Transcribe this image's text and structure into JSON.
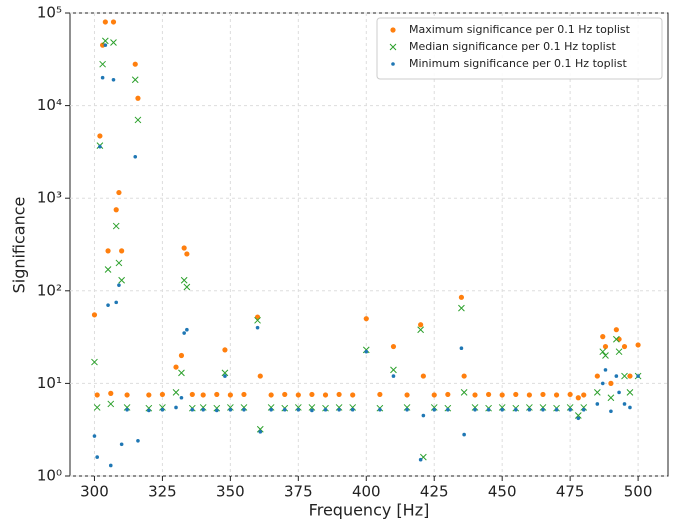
{
  "chart_data": {
    "type": "scatter",
    "xlabel": "Frequency [Hz]",
    "ylabel": "Significance",
    "yscale": "log",
    "grid": true,
    "legend": "upper right",
    "xlim": [
      291,
      511
    ],
    "ylim": [
      1,
      100000
    ],
    "xticks": [
      300,
      325,
      350,
      375,
      400,
      425,
      450,
      475,
      500
    ],
    "yticks": [
      {
        "value": 1,
        "label": "10⁰"
      },
      {
        "value": 10,
        "label": "10¹"
      },
      {
        "value": 100,
        "label": "10²"
      },
      {
        "value": 1000,
        "label": "10³"
      },
      {
        "value": 10000,
        "label": "10⁴"
      },
      {
        "value": 100000,
        "label": "10⁵"
      }
    ],
    "x": [
      300,
      301,
      302,
      303,
      304,
      305,
      306,
      307,
      308,
      309,
      310,
      312,
      315,
      316,
      320,
      325,
      330,
      332,
      333,
      334,
      336,
      340,
      345,
      348,
      350,
      355,
      360,
      361,
      365,
      370,
      375,
      380,
      385,
      390,
      395,
      400,
      405,
      410,
      415,
      420,
      421,
      425,
      430,
      435,
      436,
      440,
      445,
      450,
      455,
      460,
      465,
      470,
      475,
      478,
      480,
      485,
      487,
      488,
      490,
      492,
      493,
      495,
      497,
      500
    ],
    "series": [
      {
        "name": "Maximum significance per 0.1 Hz toplist",
        "color": "#ff7f0e",
        "marker": "o",
        "values": [
          55,
          7.5,
          4700,
          45000,
          80000,
          270,
          7.8,
          80000,
          750,
          1150,
          270,
          7.5,
          28000,
          12000,
          7.5,
          7.6,
          15,
          20,
          290,
          250,
          7.6,
          7.5,
          7.6,
          23,
          7.5,
          7.6,
          52,
          12,
          7.5,
          7.6,
          7.5,
          7.6,
          7.5,
          7.6,
          7.5,
          50,
          7.6,
          25,
          7.5,
          43,
          12,
          7.5,
          7.6,
          85,
          12,
          7.5,
          7.6,
          7.5,
          7.6,
          7.5,
          7.6,
          7.5,
          7.6,
          7,
          7.5,
          12,
          32,
          25,
          10,
          38,
          30,
          25,
          12,
          26
        ]
      },
      {
        "name": "Median significance per 0.1 Hz toplist",
        "color": "#2ca02c",
        "marker": "x",
        "values": [
          17,
          5.5,
          3700,
          28000,
          50000,
          170,
          6,
          48000,
          500,
          200,
          130,
          5.5,
          19000,
          7000,
          5.4,
          5.5,
          8,
          13,
          130,
          110,
          5.4,
          5.5,
          5.4,
          13,
          5.5,
          5.5,
          48,
          3.2,
          5.5,
          5.4,
          5.5,
          5.5,
          5.4,
          5.5,
          5.5,
          23,
          5.4,
          14,
          5.5,
          38,
          1.6,
          5.5,
          5.4,
          65,
          8,
          5.5,
          5.4,
          5.5,
          5.4,
          5.5,
          5.5,
          5.4,
          5.5,
          4.5,
          5.5,
          8,
          22,
          20,
          7,
          30,
          22,
          12,
          8,
          12
        ]
      },
      {
        "name": "Minimum significance per 0.1 Hz toplist",
        "color": "#1f77b4",
        "marker": ".",
        "values": [
          2.7,
          1.6,
          3600,
          20000,
          45000,
          70,
          1.3,
          19000,
          75,
          115,
          2.2,
          5.2,
          2800,
          2.4,
          5.1,
          5.2,
          5.5,
          7,
          35,
          38,
          5.2,
          5.2,
          5.1,
          12,
          5.2,
          5.2,
          40,
          3,
          5.2,
          5.2,
          5.2,
          5.1,
          5.2,
          5.2,
          5.2,
          22,
          5.2,
          12,
          5.2,
          1.5,
          4.5,
          5.2,
          5.2,
          24,
          2.8,
          5.2,
          5.2,
          5.2,
          5.2,
          5.2,
          5.2,
          5.2,
          5.2,
          4.2,
          5.2,
          6,
          10,
          14,
          5,
          12,
          8,
          6,
          5.5,
          12
        ]
      }
    ]
  }
}
